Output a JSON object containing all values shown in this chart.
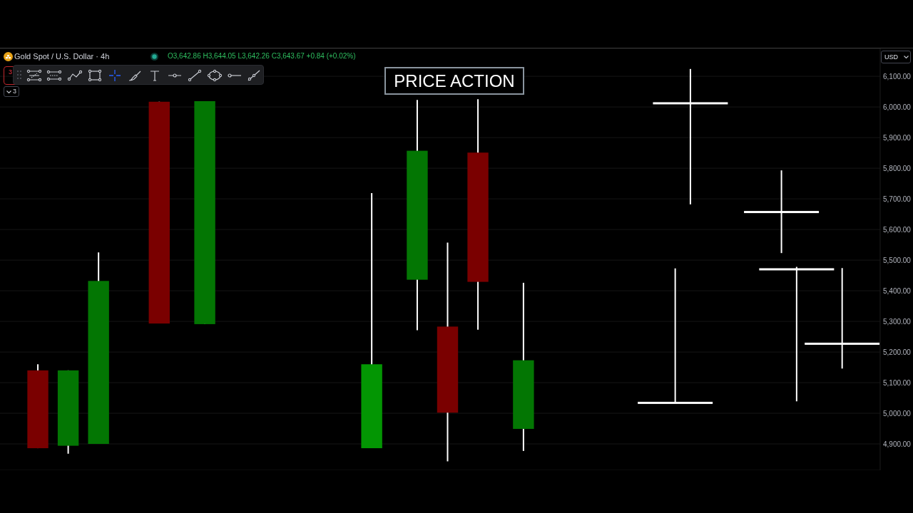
{
  "chart_data": {
    "type": "candlestick",
    "title": "PRICE ACTION",
    "subtitle": "Gold Spot / U.S. Dollar · 4h",
    "annotations": [
      "O3,642.86 H3,644.05 L3,642.26 C3,643.67 +0.84 (+0.02%)",
      "USD",
      "3",
      "3"
    ],
    "categories": [
      null,
      null,
      null,
      null,
      null,
      null,
      null,
      null,
      null,
      null,
      null,
      null,
      null,
      null,
      null,
      null,
      null,
      null,
      null,
      null,
      null,
      null,
      null,
      null,
      null,
      null,
      null,
      null,
      null,
      null,
      null,
      null,
      null,
      null,
      null,
      null,
      null,
      null,
      null,
      null,
      null,
      null,
      null,
      null,
      null,
      null,
      null,
      null,
      null,
      null,
      null,
      null,
      null,
      null,
      null,
      null,
      null,
      null
    ],
    "ohlc": [
      null,
      null,
      [
        5140,
        5160,
        4886,
        4886
      ],
      null,
      [
        4894,
        5140,
        4868,
        5140
      ],
      null,
      [
        4900,
        5525,
        4900,
        5432
      ],
      null,
      null,
      null,
      [
        6017,
        6017,
        5293,
        5293
      ],
      null,
      null,
      [
        5291,
        6019,
        5291,
        6019
      ],
      null,
      null,
      null,
      null,
      null,
      null,
      null,
      null,
      null,
      null,
      [
        4886,
        5719,
        4886,
        5160
      ],
      null,
      null,
      [
        5436,
        6023,
        5271,
        5857
      ],
      null,
      [
        5283,
        5557,
        4843,
        5002
      ],
      null,
      [
        5851,
        6025,
        5273,
        5429
      ],
      null,
      null,
      [
        4949,
        5426,
        4877,
        5173
      ],
      null,
      null,
      null,
      null,
      null,
      null,
      null,
      null,
      null,
      [
        5034,
        5473,
        5034,
        5034
      ],
      [
        6012,
        6124,
        5682,
        6012
      ],
      null,
      null,
      null,
      null,
      null,
      [
        5657,
        5793,
        5523,
        5657
      ],
      [
        5470,
        5478,
        5039,
        5470
      ],
      null,
      null,
      [
        5227,
        5474,
        5146,
        5227
      ],
      null,
      null
    ],
    "colors": [
      null,
      null,
      "#7a0000",
      null,
      "#037603",
      null,
      "#037603",
      null,
      null,
      null,
      "#7a0000",
      null,
      null,
      "#037603",
      null,
      null,
      null,
      null,
      null,
      null,
      null,
      null,
      null,
      null,
      "#039603",
      null,
      null,
      "#037603",
      null,
      "#7a0000",
      null,
      "#7a0000",
      null,
      null,
      "#037603",
      null,
      null,
      null,
      null,
      null,
      null,
      null,
      null,
      null,
      "#ffffff",
      "#ffffff",
      null,
      null,
      null,
      null,
      null,
      "#ffffff",
      "#ffffff",
      null,
      null,
      "#ffffff",
      null,
      null
    ],
    "ylim": [
      4814,
      6191
    ],
    "yticks": [
      {
        "value": 4900,
        "label": "4,900.00"
      },
      {
        "value": 5000,
        "label": "5,000.00"
      },
      {
        "value": 5100,
        "label": "5,100.00"
      },
      {
        "value": 5200,
        "label": "5,200.00"
      },
      {
        "value": 5300,
        "label": "5,300.00"
      },
      {
        "value": 5400,
        "label": "5,400.00"
      },
      {
        "value": 5500,
        "label": "5,500.00"
      },
      {
        "value": 5600,
        "label": "5,600.00"
      },
      {
        "value": 5700,
        "label": "5,700.00"
      },
      {
        "value": 5800,
        "label": "5,800.00"
      },
      {
        "value": 5900,
        "label": "5,900.00"
      },
      {
        "value": 6000,
        "label": "6,000.00"
      },
      {
        "value": 6100,
        "label": "6,100.00"
      }
    ],
    "grid": "y",
    "tick_labels": "y"
  }
}
